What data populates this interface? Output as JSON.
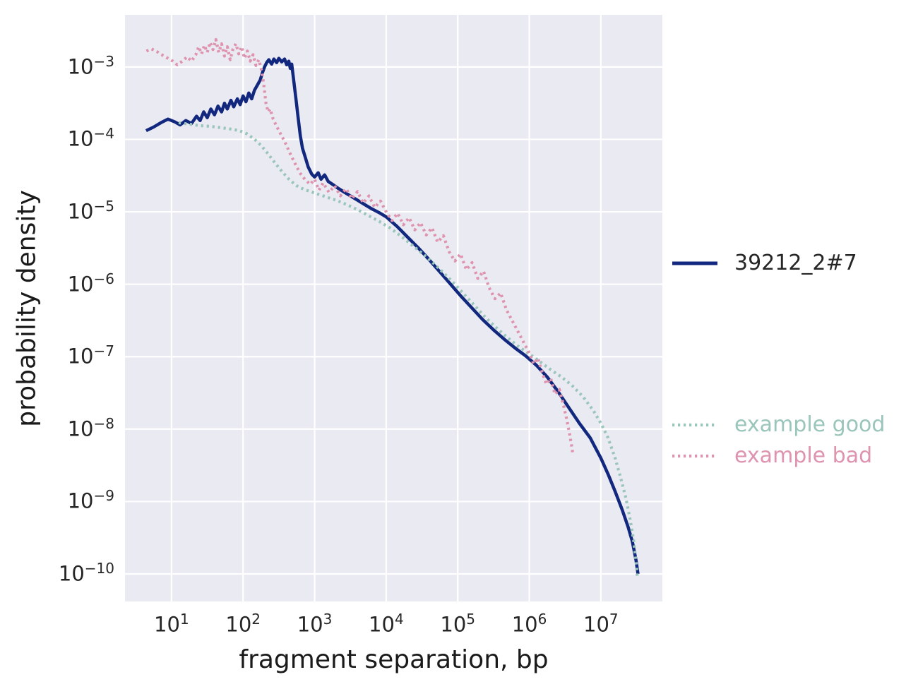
{
  "chart_data": {
    "type": "line",
    "title": "",
    "xlabel": "fragment separation, bp",
    "ylabel": "probability density",
    "x_scale": "log",
    "y_scale": "log",
    "grid": true,
    "plot_background": "#eaeaf2",
    "gridline_color": "#ffffff",
    "tick_base": "10",
    "x_tick_exponents": [
      1,
      2,
      3,
      4,
      5,
      6,
      7
    ],
    "y_tick_exponents": [
      -3,
      -4,
      -5,
      -6,
      -7,
      -8,
      -9,
      -10
    ],
    "x_range_log10": [
      0.35,
      7.86
    ],
    "y_range_log10": [
      -10.38,
      -2.28
    ],
    "legend_position": "right",
    "series": [
      {
        "name": "39212_2#7",
        "color": "#12287e",
        "label_color": "#262626",
        "style": "solid",
        "points_log10": [
          [
            0.645,
            -3.88
          ],
          [
            0.75,
            -3.83
          ],
          [
            0.85,
            -3.77
          ],
          [
            0.95,
            -3.72
          ],
          [
            1.05,
            -3.76
          ],
          [
            1.12,
            -3.8
          ],
          [
            1.2,
            -3.74
          ],
          [
            1.28,
            -3.78
          ],
          [
            1.35,
            -3.68
          ],
          [
            1.4,
            -3.74
          ],
          [
            1.45,
            -3.62
          ],
          [
            1.5,
            -3.7
          ],
          [
            1.55,
            -3.58
          ],
          [
            1.6,
            -3.66
          ],
          [
            1.65,
            -3.54
          ],
          [
            1.7,
            -3.62
          ],
          [
            1.74,
            -3.5
          ],
          [
            1.78,
            -3.58
          ],
          [
            1.83,
            -3.46
          ],
          [
            1.87,
            -3.55
          ],
          [
            1.92,
            -3.44
          ],
          [
            1.96,
            -3.52
          ],
          [
            2.0,
            -3.4
          ],
          [
            2.04,
            -3.48
          ],
          [
            2.08,
            -3.36
          ],
          [
            2.12,
            -3.44
          ],
          [
            2.16,
            -3.32
          ],
          [
            2.2,
            -3.25
          ],
          [
            2.24,
            -3.18
          ],
          [
            2.27,
            -3.08
          ],
          [
            2.3,
            -3.0
          ],
          [
            2.33,
            -2.94
          ],
          [
            2.36,
            -2.9
          ],
          [
            2.4,
            -2.96
          ],
          [
            2.43,
            -2.89
          ],
          [
            2.47,
            -2.94
          ],
          [
            2.5,
            -2.88
          ],
          [
            2.54,
            -2.93
          ],
          [
            2.58,
            -2.89
          ],
          [
            2.61,
            -2.97
          ],
          [
            2.64,
            -2.92
          ],
          [
            2.66,
            -3.02
          ],
          [
            2.68,
            -2.96
          ],
          [
            2.71,
            -3.2
          ],
          [
            2.74,
            -3.45
          ],
          [
            2.77,
            -3.7
          ],
          [
            2.8,
            -3.95
          ],
          [
            2.83,
            -4.12
          ],
          [
            2.87,
            -4.25
          ],
          [
            2.91,
            -4.38
          ],
          [
            2.96,
            -4.48
          ],
          [
            3.0,
            -4.52
          ],
          [
            3.05,
            -4.46
          ],
          [
            3.09,
            -4.55
          ],
          [
            3.14,
            -4.49
          ],
          [
            3.19,
            -4.58
          ],
          [
            3.25,
            -4.62
          ],
          [
            3.32,
            -4.67
          ],
          [
            3.4,
            -4.72
          ],
          [
            3.5,
            -4.78
          ],
          [
            3.6,
            -4.84
          ],
          [
            3.7,
            -4.9
          ],
          [
            3.8,
            -4.96
          ],
          [
            3.9,
            -5.01
          ],
          [
            4.0,
            -5.07
          ],
          [
            4.15,
            -5.2
          ],
          [
            4.3,
            -5.35
          ],
          [
            4.45,
            -5.5
          ],
          [
            4.6,
            -5.66
          ],
          [
            4.75,
            -5.83
          ],
          [
            4.9,
            -6.0
          ],
          [
            5.05,
            -6.17
          ],
          [
            5.2,
            -6.33
          ],
          [
            5.35,
            -6.49
          ],
          [
            5.5,
            -6.63
          ],
          [
            5.65,
            -6.76
          ],
          [
            5.8,
            -6.88
          ],
          [
            5.95,
            -6.99
          ],
          [
            6.1,
            -7.12
          ],
          [
            6.25,
            -7.28
          ],
          [
            6.4,
            -7.48
          ],
          [
            6.55,
            -7.7
          ],
          [
            6.7,
            -7.92
          ],
          [
            6.85,
            -8.12
          ],
          [
            7.0,
            -8.4
          ],
          [
            7.1,
            -8.62
          ],
          [
            7.2,
            -8.86
          ],
          [
            7.3,
            -9.12
          ],
          [
            7.38,
            -9.35
          ],
          [
            7.44,
            -9.55
          ],
          [
            7.49,
            -9.8
          ],
          [
            7.52,
            -10.0
          ]
        ]
      },
      {
        "name": "example good",
        "color": "#99c5ba",
        "label_color": "#99c5ba",
        "style": "dotted",
        "points_log10": [
          [
            1.1,
            -3.77
          ],
          [
            1.25,
            -3.79
          ],
          [
            1.4,
            -3.81
          ],
          [
            1.55,
            -3.82
          ],
          [
            1.7,
            -3.84
          ],
          [
            1.85,
            -3.86
          ],
          [
            1.95,
            -3.88
          ],
          [
            2.05,
            -3.92
          ],
          [
            2.15,
            -3.99
          ],
          [
            2.25,
            -4.08
          ],
          [
            2.35,
            -4.2
          ],
          [
            2.45,
            -4.33
          ],
          [
            2.55,
            -4.45
          ],
          [
            2.65,
            -4.56
          ],
          [
            2.75,
            -4.64
          ],
          [
            2.85,
            -4.69
          ],
          [
            3.0,
            -4.74
          ],
          [
            3.15,
            -4.79
          ],
          [
            3.3,
            -4.84
          ],
          [
            3.45,
            -4.9
          ],
          [
            3.6,
            -4.97
          ],
          [
            3.75,
            -5.05
          ],
          [
            3.9,
            -5.13
          ],
          [
            4.05,
            -5.22
          ],
          [
            4.2,
            -5.33
          ],
          [
            4.35,
            -5.45
          ],
          [
            4.5,
            -5.57
          ],
          [
            4.65,
            -5.7
          ],
          [
            4.8,
            -5.84
          ],
          [
            4.95,
            -5.99
          ],
          [
            5.1,
            -6.15
          ],
          [
            5.25,
            -6.31
          ],
          [
            5.4,
            -6.47
          ],
          [
            5.55,
            -6.61
          ],
          [
            5.7,
            -6.74
          ],
          [
            5.85,
            -6.86
          ],
          [
            6.0,
            -6.96
          ],
          [
            6.15,
            -7.07
          ],
          [
            6.3,
            -7.18
          ],
          [
            6.45,
            -7.28
          ],
          [
            6.6,
            -7.4
          ],
          [
            6.75,
            -7.55
          ],
          [
            6.9,
            -7.75
          ],
          [
            7.0,
            -7.92
          ],
          [
            7.1,
            -8.12
          ],
          [
            7.2,
            -8.4
          ],
          [
            7.28,
            -8.68
          ],
          [
            7.35,
            -8.95
          ],
          [
            7.41,
            -9.25
          ],
          [
            7.46,
            -9.55
          ],
          [
            7.5,
            -9.9
          ],
          [
            7.51,
            -10.05
          ]
        ]
      },
      {
        "name": "example bad",
        "color": "#de93ae",
        "label_color": "#de93ae",
        "style": "dotted",
        "points_log10": [
          [
            0.65,
            -2.78
          ],
          [
            0.72,
            -2.75
          ],
          [
            0.8,
            -2.79
          ],
          [
            0.88,
            -2.84
          ],
          [
            0.95,
            -2.88
          ],
          [
            1.02,
            -2.92
          ],
          [
            1.08,
            -2.97
          ],
          [
            1.15,
            -2.92
          ],
          [
            1.22,
            -2.86
          ],
          [
            1.28,
            -2.92
          ],
          [
            1.34,
            -2.83
          ],
          [
            1.38,
            -2.72
          ],
          [
            1.42,
            -2.82
          ],
          [
            1.46,
            -2.7
          ],
          [
            1.5,
            -2.8
          ],
          [
            1.54,
            -2.66
          ],
          [
            1.58,
            -2.76
          ],
          [
            1.62,
            -2.62
          ],
          [
            1.66,
            -2.8
          ],
          [
            1.7,
            -2.68
          ],
          [
            1.74,
            -2.85
          ],
          [
            1.78,
            -2.72
          ],
          [
            1.82,
            -2.9
          ],
          [
            1.86,
            -2.75
          ],
          [
            1.9,
            -2.68
          ],
          [
            1.94,
            -2.82
          ],
          [
            1.98,
            -2.72
          ],
          [
            2.02,
            -2.88
          ],
          [
            2.06,
            -2.78
          ],
          [
            2.1,
            -2.92
          ],
          [
            2.14,
            -2.83
          ],
          [
            2.18,
            -2.98
          ],
          [
            2.22,
            -2.9
          ],
          [
            2.26,
            -3.05
          ],
          [
            2.29,
            -3.25
          ],
          [
            2.32,
            -3.5
          ],
          [
            2.35,
            -3.62
          ],
          [
            2.38,
            -3.58
          ],
          [
            2.42,
            -3.72
          ],
          [
            2.46,
            -3.8
          ],
          [
            2.5,
            -3.88
          ],
          [
            2.55,
            -3.97
          ],
          [
            2.6,
            -4.07
          ],
          [
            2.65,
            -4.18
          ],
          [
            2.7,
            -4.28
          ],
          [
            2.75,
            -4.38
          ],
          [
            2.8,
            -4.47
          ],
          [
            2.87,
            -4.56
          ],
          [
            2.94,
            -4.62
          ],
          [
            3.0,
            -4.55
          ],
          [
            3.06,
            -4.7
          ],
          [
            3.12,
            -4.6
          ],
          [
            3.2,
            -4.73
          ],
          [
            3.28,
            -4.64
          ],
          [
            3.36,
            -4.78
          ],
          [
            3.44,
            -4.68
          ],
          [
            3.52,
            -4.82
          ],
          [
            3.6,
            -4.72
          ],
          [
            3.68,
            -4.88
          ],
          [
            3.76,
            -4.78
          ],
          [
            3.84,
            -4.94
          ],
          [
            3.92,
            -4.85
          ],
          [
            4.0,
            -5.0
          ],
          [
            4.08,
            -5.12
          ],
          [
            4.16,
            -5.02
          ],
          [
            4.24,
            -5.18
          ],
          [
            4.32,
            -5.08
          ],
          [
            4.4,
            -5.25
          ],
          [
            4.48,
            -5.15
          ],
          [
            4.56,
            -5.32
          ],
          [
            4.64,
            -5.22
          ],
          [
            4.72,
            -5.42
          ],
          [
            4.8,
            -5.33
          ],
          [
            4.88,
            -5.55
          ],
          [
            4.96,
            -5.68
          ],
          [
            5.04,
            -5.58
          ],
          [
            5.12,
            -5.8
          ],
          [
            5.2,
            -5.7
          ],
          [
            5.28,
            -5.92
          ],
          [
            5.36,
            -5.82
          ],
          [
            5.44,
            -6.05
          ],
          [
            5.52,
            -6.2
          ],
          [
            5.6,
            -6.12
          ],
          [
            5.68,
            -6.35
          ],
          [
            5.76,
            -6.5
          ],
          [
            5.84,
            -6.65
          ],
          [
            5.92,
            -6.8
          ],
          [
            6.0,
            -6.95
          ],
          [
            6.06,
            -7.1
          ],
          [
            6.12,
            -7.02
          ],
          [
            6.18,
            -7.22
          ],
          [
            6.24,
            -7.38
          ],
          [
            6.3,
            -7.3
          ],
          [
            6.36,
            -7.52
          ],
          [
            6.42,
            -7.45
          ],
          [
            6.48,
            -7.68
          ],
          [
            6.52,
            -7.85
          ],
          [
            6.56,
            -8.05
          ],
          [
            6.59,
            -8.22
          ],
          [
            6.61,
            -8.35
          ]
        ]
      }
    ]
  }
}
